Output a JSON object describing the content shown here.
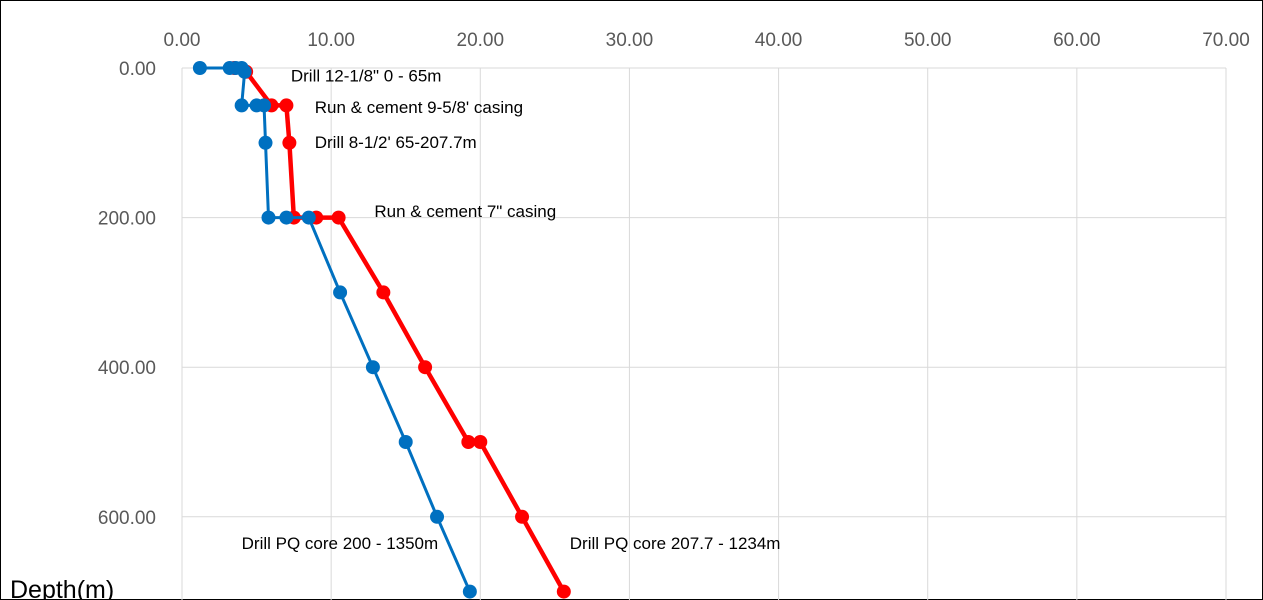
{
  "chart_data": {
    "type": "line",
    "title": "",
    "xlabel": "",
    "ylabel": "Depth(m)",
    "x_axis_position": "top",
    "y_inverted": true,
    "xlim": [
      0,
      70
    ],
    "ylim": [
      0,
      700
    ],
    "x_ticks": [
      "0.00",
      "10.00",
      "20.00",
      "30.00",
      "40.00",
      "50.00",
      "60.00",
      "70.00"
    ],
    "y_ticks": [
      "0.00",
      "200.00",
      "400.00",
      "600.00"
    ],
    "grid": true,
    "series": [
      {
        "color": "#ff0000",
        "points": [
          [
            3.5,
            0
          ],
          [
            4.3,
            5
          ],
          [
            6.0,
            50
          ],
          [
            7.0,
            50
          ],
          [
            7.2,
            100
          ],
          [
            7.5,
            200
          ],
          [
            9.0,
            200
          ],
          [
            10.5,
            200
          ],
          [
            13.5,
            300
          ],
          [
            16.3,
            400
          ],
          [
            19.2,
            500
          ],
          [
            20.0,
            500
          ],
          [
            22.8,
            600
          ],
          [
            25.6,
            700
          ]
        ]
      },
      {
        "color": "#0070c0",
        "points": [
          [
            1.2,
            0
          ],
          [
            3.2,
            0
          ],
          [
            3.6,
            0
          ],
          [
            4.0,
            0
          ],
          [
            4.2,
            5
          ],
          [
            4.0,
            50
          ],
          [
            5.0,
            50
          ],
          [
            5.5,
            50
          ],
          [
            5.6,
            100
          ],
          [
            5.8,
            200
          ],
          [
            7.0,
            200
          ],
          [
            8.5,
            200
          ],
          [
            10.6,
            300
          ],
          [
            12.8,
            400
          ],
          [
            15.0,
            500
          ],
          [
            17.1,
            600
          ],
          [
            19.3,
            700
          ]
        ]
      }
    ],
    "annotations": [
      {
        "text": "Drill 12-1/8\" 0 - 65m",
        "x": 7.3,
        "y": 18
      },
      {
        "text": "Run & cement 9-5/8' casing",
        "x": 8.9,
        "y": 60
      },
      {
        "text": "Drill 8-1/2' 65-207.7m",
        "x": 8.9,
        "y": 107
      },
      {
        "text": "Run & cement 7\" casing",
        "x": 12.9,
        "y": 199
      },
      {
        "text": "Drill PQ core 200 - 1350m",
        "x": 4.0,
        "y": 643
      },
      {
        "text": "Drill PQ core 207.7 - 1234m",
        "x": 26.0,
        "y": 643
      }
    ]
  }
}
